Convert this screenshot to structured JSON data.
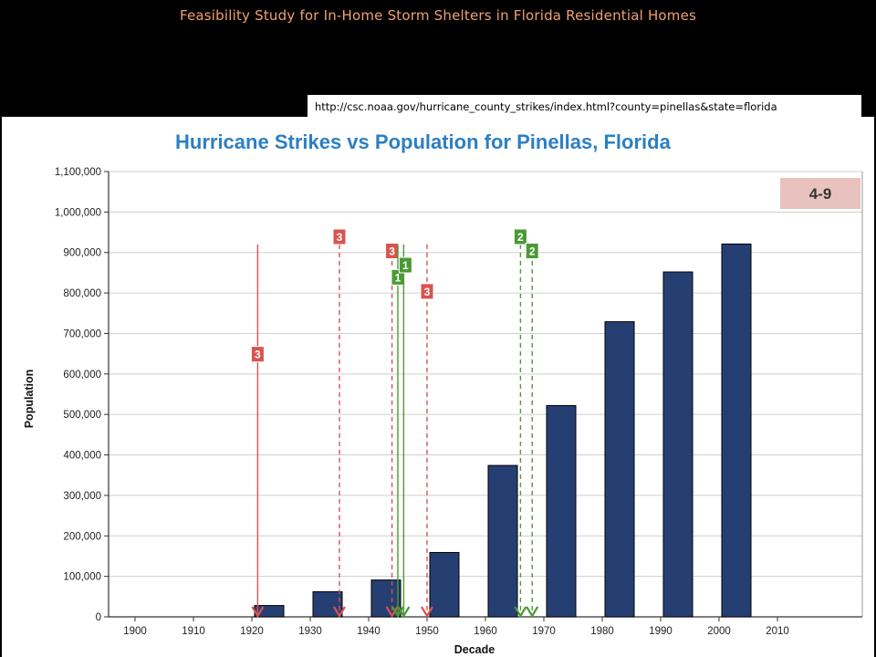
{
  "slide": {
    "title": "Feasibility Study for In-Home Storm Shelters in Florida Residential Homes",
    "source_url": "http://csc.noaa.gov/hurricane_county_strikes/index.html?county=pinellas&state=florida"
  },
  "chart_data": {
    "type": "bar",
    "title": "Hurricane Strikes vs Population for Pinellas, Florida",
    "xlabel": "Decade",
    "ylabel": "Population",
    "categories": [
      "1900",
      "1910",
      "1920",
      "1930",
      "1940",
      "1950",
      "1960",
      "1970",
      "1980",
      "1990",
      "2000",
      "2010"
    ],
    "values": [
      0,
      0,
      28000,
      62000,
      91000,
      159000,
      374000,
      522000,
      729000,
      852000,
      921000,
      0
    ],
    "ylim": [
      0,
      1100000
    ],
    "yticks": [
      0,
      100000,
      200000,
      300000,
      400000,
      500000,
      600000,
      700000,
      800000,
      900000,
      1000000,
      1100000
    ],
    "ytick_labels": [
      "0",
      "100,000",
      "200,000",
      "300,000",
      "400,000",
      "500,000",
      "600,000",
      "700,000",
      "800,000",
      "900,000",
      "1,000,000",
      "1,100,000"
    ],
    "grid": true,
    "bar_color": "#263f73",
    "badge": "4-9",
    "strikes": [
      {
        "year": 1921,
        "category": "3",
        "style": "solid",
        "color": "#d9534f",
        "label_level": 650000
      },
      {
        "year": 1935,
        "category": "3",
        "style": "dashed",
        "color": "#d9534f",
        "label_level": 940000
      },
      {
        "year": 1944,
        "category": "3",
        "style": "dashed",
        "color": "#d9534f",
        "label_level": 905000
      },
      {
        "year": 1945,
        "category": "1",
        "style": "solid",
        "color": "#4a9a35",
        "label_level": 840000
      },
      {
        "year": 1946,
        "category": "1",
        "style": "solid",
        "color": "#4a9a35",
        "label_level": 870000
      },
      {
        "year": 1950,
        "category": "3",
        "style": "dashed",
        "color": "#d9534f",
        "label_level": 805000
      },
      {
        "year": 1966,
        "category": "2",
        "style": "dashed",
        "color": "#4a9a35",
        "label_level": 940000
      },
      {
        "year": 1968,
        "category": "2",
        "style": "dashed",
        "color": "#4a9a35",
        "label_level": 905000
      }
    ]
  }
}
